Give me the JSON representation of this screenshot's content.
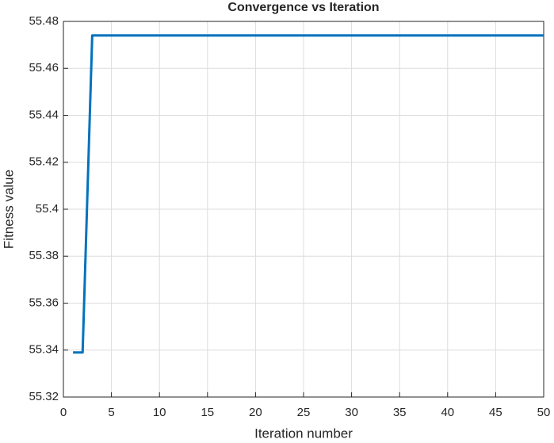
{
  "chart_data": {
    "type": "line",
    "title": "Convergence vs Iteration",
    "xlabel": "Iteration number",
    "ylabel": "Fitness value",
    "x": [
      1,
      2,
      3,
      4,
      5,
      6,
      7,
      8,
      9,
      10,
      11,
      12,
      13,
      14,
      15,
      16,
      17,
      18,
      19,
      20,
      21,
      22,
      23,
      24,
      25,
      26,
      27,
      28,
      29,
      30,
      31,
      32,
      33,
      34,
      35,
      36,
      37,
      38,
      39,
      40,
      41,
      42,
      43,
      44,
      45,
      46,
      47,
      48,
      49,
      50
    ],
    "series": [
      {
        "name": "Fitness",
        "color": "#0072bd",
        "values": [
          55.339,
          55.339,
          55.474,
          55.474,
          55.474,
          55.474,
          55.474,
          55.474,
          55.474,
          55.474,
          55.474,
          55.474,
          55.474,
          55.474,
          55.474,
          55.474,
          55.474,
          55.474,
          55.474,
          55.474,
          55.474,
          55.474,
          55.474,
          55.474,
          55.474,
          55.474,
          55.474,
          55.474,
          55.474,
          55.474,
          55.474,
          55.474,
          55.474,
          55.474,
          55.474,
          55.474,
          55.474,
          55.474,
          55.474,
          55.474,
          55.474,
          55.474,
          55.474,
          55.474,
          55.474,
          55.474,
          55.474,
          55.474,
          55.474,
          55.474
        ]
      }
    ],
    "xlim": [
      0,
      50
    ],
    "xticks": [
      0,
      5,
      10,
      15,
      20,
      25,
      30,
      35,
      40,
      45,
      50
    ],
    "ylim": [
      55.32,
      55.48
    ],
    "yticks": [
      55.32,
      55.34,
      55.36,
      55.38,
      55.4,
      55.42,
      55.44,
      55.46,
      55.48
    ],
    "grid": true
  }
}
